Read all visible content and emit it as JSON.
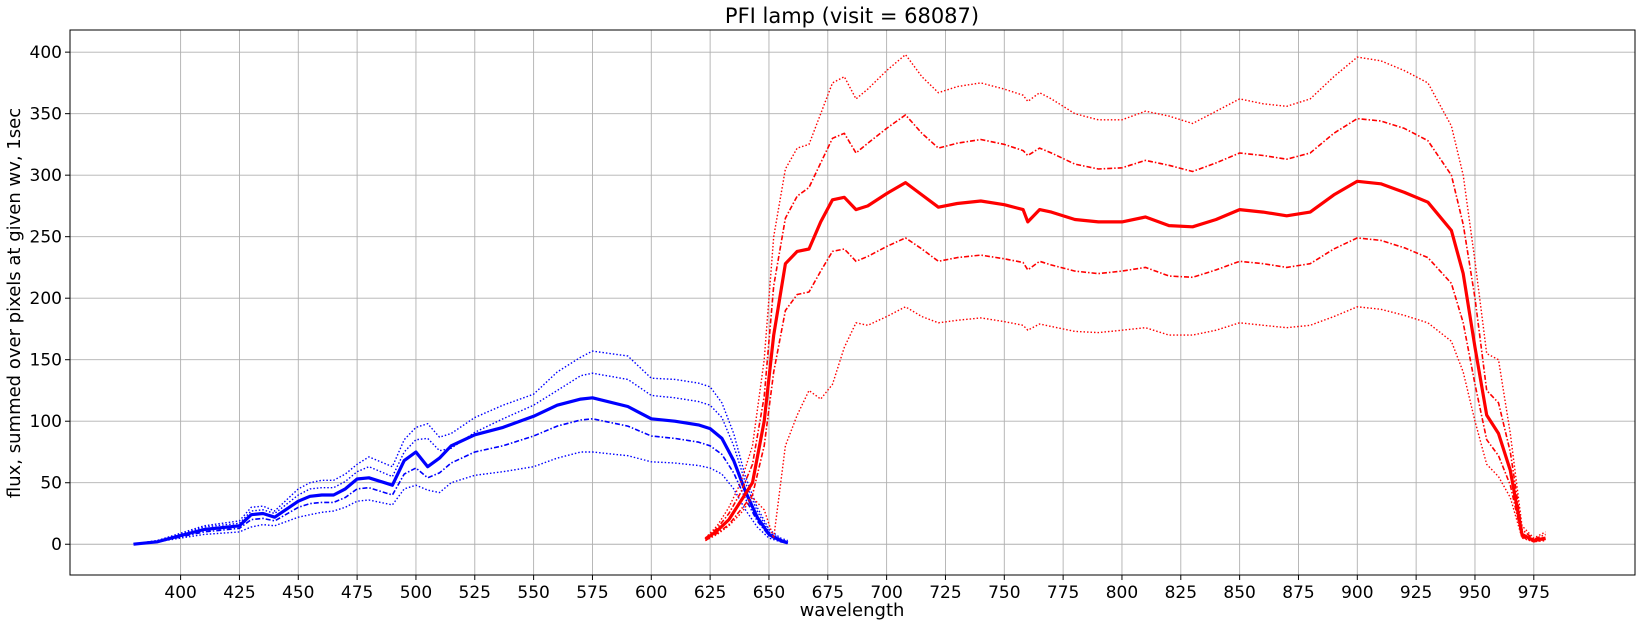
{
  "chart_data": {
    "type": "line",
    "title": "PFI lamp (visit = 68087)",
    "xlabel": "wavelength",
    "ylabel": "flux, summed over pixels at given wv, 1sec",
    "xlim": [
      353,
      1018
    ],
    "ylim": [
      -25,
      418
    ],
    "xticks": [
      400,
      425,
      450,
      475,
      500,
      525,
      550,
      575,
      600,
      625,
      650,
      675,
      700,
      725,
      750,
      775,
      800,
      825,
      850,
      875,
      900,
      925,
      950,
      975
    ],
    "yticks": [
      0,
      50,
      100,
      150,
      200,
      250,
      300,
      350,
      400
    ],
    "grid": true,
    "legend": "none",
    "colors": {
      "blue_arm": "#0000ff",
      "red_arm": "#ff0000"
    },
    "series": [
      {
        "arm": "blue",
        "color": "#0000ff",
        "style": "thin-dotted",
        "x": [
          380,
          390,
          400,
          410,
          425,
          430,
          435,
          440,
          450,
          455,
          460,
          465,
          470,
          475,
          480,
          490,
          495,
          500,
          505,
          510,
          515,
          525,
          537,
          550,
          560,
          570,
          575,
          590,
          600,
          610,
          620,
          625,
          630,
          635,
          640,
          645,
          650,
          655,
          658
        ],
        "y": [
          0,
          3,
          9,
          15,
          19,
          30,
          31,
          27,
          45,
          50,
          52,
          52,
          57,
          65,
          71,
          63,
          85,
          95,
          98,
          87,
          90,
          103,
          113,
          122,
          140,
          152,
          157,
          153,
          135,
          134,
          131,
          128,
          115,
          90,
          55,
          30,
          12,
          5,
          3
        ]
      },
      {
        "arm": "blue",
        "color": "#0000ff",
        "style": "thin-dotted",
        "x": [
          380,
          390,
          400,
          410,
          425,
          430,
          435,
          440,
          450,
          455,
          460,
          465,
          470,
          475,
          480,
          490,
          495,
          500,
          505,
          510,
          515,
          525,
          537,
          550,
          560,
          570,
          575,
          590,
          600,
          610,
          620,
          625,
          630,
          635,
          640,
          645,
          650,
          655,
          658
        ],
        "y": [
          0,
          3,
          8,
          14,
          17,
          27,
          28,
          25,
          40,
          45,
          46,
          46,
          51,
          59,
          63,
          55,
          75,
          85,
          86,
          76,
          78,
          91,
          102,
          113,
          125,
          137,
          139,
          134,
          121,
          119,
          116,
          113,
          103,
          80,
          50,
          27,
          10,
          4,
          2
        ]
      },
      {
        "arm": "blue",
        "color": "#0000ff",
        "style": "thick-solid",
        "x": [
          380,
          390,
          400,
          410,
          425,
          430,
          435,
          440,
          450,
          455,
          460,
          465,
          470,
          475,
          480,
          490,
          495,
          500,
          505,
          510,
          515,
          525,
          537,
          550,
          560,
          570,
          575,
          590,
          600,
          610,
          620,
          625,
          630,
          635,
          640,
          645,
          650,
          655,
          658
        ],
        "y": [
          0,
          2,
          7,
          12,
          15,
          24,
          25,
          22,
          35,
          39,
          40,
          40,
          45,
          53,
          54,
          48,
          68,
          75,
          63,
          70,
          80,
          89,
          95,
          104,
          113,
          118,
          119,
          112,
          102,
          100,
          97,
          94,
          86,
          68,
          43,
          22,
          8,
          3,
          1
        ]
      },
      {
        "arm": "blue",
        "color": "#0000ff",
        "style": "thin-dashdot",
        "x": [
          380,
          390,
          400,
          410,
          425,
          430,
          435,
          440,
          450,
          455,
          460,
          465,
          470,
          475,
          480,
          490,
          495,
          500,
          505,
          510,
          515,
          525,
          537,
          550,
          560,
          570,
          575,
          590,
          600,
          610,
          620,
          625,
          630,
          635,
          640,
          645,
          650,
          655,
          658
        ],
        "y": [
          0,
          2,
          6,
          10,
          13,
          20,
          21,
          19,
          30,
          33,
          34,
          34,
          38,
          45,
          46,
          40,
          57,
          62,
          54,
          58,
          66,
          75,
          80,
          88,
          96,
          101,
          102,
          96,
          88,
          86,
          83,
          80,
          73,
          58,
          37,
          19,
          7,
          2,
          1
        ]
      },
      {
        "arm": "blue",
        "color": "#0000ff",
        "style": "thin-dotted",
        "x": [
          380,
          390,
          400,
          410,
          425,
          430,
          435,
          440,
          450,
          455,
          460,
          465,
          470,
          475,
          480,
          490,
          495,
          500,
          505,
          510,
          515,
          525,
          537,
          550,
          560,
          570,
          575,
          590,
          600,
          610,
          620,
          625,
          630,
          635,
          640,
          645,
          650,
          655,
          658
        ],
        "y": [
          0,
          2,
          5,
          8,
          10,
          14,
          16,
          15,
          22,
          24,
          26,
          27,
          30,
          35,
          36,
          32,
          45,
          48,
          44,
          42,
          50,
          56,
          59,
          63,
          70,
          75,
          75,
          72,
          67,
          66,
          64,
          62,
          57,
          45,
          28,
          14,
          5,
          2,
          1
        ]
      },
      {
        "arm": "red",
        "color": "#ff0000",
        "style": "thin-dotted",
        "x": [
          623,
          628,
          633,
          638,
          643,
          648,
          652,
          657,
          662,
          667,
          672,
          677,
          682,
          687,
          692,
          700,
          708,
          715,
          722,
          730,
          740,
          750,
          758,
          760,
          765,
          770,
          780,
          790,
          800,
          810,
          820,
          830,
          840,
          850,
          860,
          870,
          880,
          890,
          900,
          910,
          920,
          930,
          940,
          945,
          950,
          955,
          960,
          965,
          970,
          975,
          980
        ],
        "y": [
          5,
          15,
          30,
          50,
          80,
          150,
          250,
          305,
          322,
          325,
          350,
          375,
          380,
          362,
          370,
          385,
          398,
          380,
          367,
          372,
          375,
          370,
          365,
          360,
          367,
          362,
          350,
          345,
          345,
          352,
          348,
          342,
          352,
          362,
          358,
          356,
          362,
          380,
          396,
          393,
          385,
          375,
          340,
          300,
          230,
          155,
          150,
          90,
          15,
          5,
          10
        ]
      },
      {
        "arm": "red",
        "color": "#ff0000",
        "style": "thin-dashdot",
        "x": [
          623,
          628,
          633,
          638,
          643,
          648,
          652,
          657,
          662,
          667,
          672,
          677,
          682,
          687,
          692,
          700,
          708,
          715,
          722,
          730,
          740,
          750,
          758,
          760,
          765,
          770,
          780,
          790,
          800,
          810,
          820,
          830,
          840,
          850,
          860,
          870,
          880,
          890,
          900,
          910,
          920,
          930,
          940,
          945,
          950,
          955,
          960,
          965,
          970,
          975,
          980
        ],
        "y": [
          5,
          13,
          25,
          42,
          65,
          120,
          210,
          265,
          283,
          290,
          310,
          330,
          334,
          318,
          326,
          338,
          349,
          334,
          322,
          326,
          329,
          325,
          320,
          316,
          322,
          318,
          309,
          305,
          306,
          312,
          308,
          303,
          310,
          318,
          316,
          313,
          318,
          334,
          346,
          344,
          338,
          328,
          300,
          260,
          200,
          125,
          115,
          75,
          12,
          4,
          8
        ]
      },
      {
        "arm": "red",
        "color": "#ff0000",
        "style": "thick-solid",
        "x": [
          623,
          628,
          633,
          638,
          643,
          648,
          652,
          657,
          662,
          667,
          672,
          677,
          682,
          687,
          692,
          700,
          708,
          715,
          722,
          730,
          740,
          750,
          758,
          760,
          765,
          770,
          780,
          790,
          800,
          810,
          820,
          830,
          840,
          850,
          860,
          870,
          880,
          890,
          900,
          910,
          920,
          930,
          940,
          945,
          950,
          955,
          960,
          965,
          970,
          975,
          980
        ],
        "y": [
          4,
          11,
          20,
          35,
          50,
          100,
          170,
          228,
          238,
          240,
          262,
          280,
          282,
          272,
          275,
          285,
          294,
          284,
          274,
          277,
          279,
          276,
          272,
          262,
          272,
          270,
          264,
          262,
          262,
          266,
          259,
          258,
          264,
          272,
          270,
          267,
          270,
          284,
          295,
          293,
          286,
          278,
          255,
          220,
          160,
          105,
          90,
          60,
          8,
          3,
          5
        ]
      },
      {
        "arm": "red",
        "color": "#ff0000",
        "style": "thin-dashdot",
        "x": [
          623,
          628,
          633,
          638,
          643,
          648,
          652,
          657,
          662,
          667,
          672,
          677,
          682,
          687,
          692,
          700,
          708,
          715,
          722,
          730,
          740,
          750,
          758,
          760,
          765,
          770,
          780,
          790,
          800,
          810,
          820,
          830,
          840,
          850,
          860,
          870,
          880,
          890,
          900,
          910,
          920,
          930,
          940,
          945,
          950,
          955,
          960,
          965,
          970,
          975,
          980
        ],
        "y": [
          3,
          9,
          16,
          28,
          40,
          80,
          140,
          190,
          203,
          205,
          222,
          238,
          240,
          230,
          234,
          242,
          249,
          240,
          230,
          233,
          235,
          232,
          229,
          223,
          230,
          227,
          222,
          220,
          222,
          225,
          218,
          217,
          223,
          230,
          228,
          225,
          228,
          240,
          249,
          247,
          241,
          233,
          212,
          180,
          130,
          85,
          72,
          48,
          6,
          2,
          4
        ]
      },
      {
        "arm": "red",
        "color": "#ff0000",
        "style": "thin-dotted",
        "x": [
          623,
          628,
          633,
          638,
          643,
          648,
          652,
          657,
          662,
          667,
          672,
          677,
          682,
          687,
          692,
          700,
          708,
          715,
          722,
          730,
          740,
          750,
          758,
          760,
          765,
          770,
          780,
          790,
          800,
          810,
          820,
          830,
          840,
          850,
          860,
          870,
          880,
          890,
          900,
          910,
          920,
          930,
          940,
          945,
          950,
          955,
          960,
          965,
          970,
          975,
          980
        ],
        "y": [
          3,
          8,
          15,
          25,
          38,
          28,
          5,
          80,
          105,
          125,
          118,
          130,
          160,
          180,
          178,
          185,
          193,
          185,
          180,
          182,
          184,
          181,
          178,
          174,
          179,
          177,
          173,
          172,
          174,
          176,
          170,
          170,
          174,
          180,
          178,
          176,
          178,
          185,
          193,
          191,
          186,
          180,
          165,
          140,
          100,
          65,
          55,
          38,
          5,
          2,
          3
        ]
      }
    ]
  }
}
